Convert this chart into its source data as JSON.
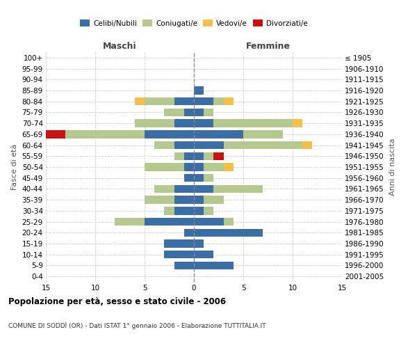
{
  "age_groups": [
    "0-4",
    "5-9",
    "10-14",
    "15-19",
    "20-24",
    "25-29",
    "30-34",
    "35-39",
    "40-44",
    "45-49",
    "50-54",
    "55-59",
    "60-64",
    "65-69",
    "70-74",
    "75-79",
    "80-84",
    "85-89",
    "90-94",
    "95-99",
    "100+"
  ],
  "birth_years": [
    "2001-2005",
    "1996-2000",
    "1991-1995",
    "1986-1990",
    "1981-1985",
    "1976-1980",
    "1971-1975",
    "1966-1970",
    "1961-1965",
    "1956-1960",
    "1951-1955",
    "1946-1950",
    "1941-1945",
    "1936-1940",
    "1931-1935",
    "1926-1930",
    "1921-1925",
    "1916-1920",
    "1911-1915",
    "1906-1910",
    "≤ 1905"
  ],
  "males_celibi": [
    0,
    2,
    3,
    3,
    1,
    5,
    2,
    2,
    2,
    1,
    1,
    1,
    2,
    5,
    2,
    1,
    2,
    0,
    0,
    0,
    0
  ],
  "males_coniugati": [
    0,
    0,
    0,
    0,
    0,
    3,
    1,
    3,
    2,
    0,
    4,
    1,
    2,
    8,
    4,
    2,
    3,
    0,
    0,
    0,
    0
  ],
  "males_vedovi": [
    0,
    0,
    0,
    0,
    0,
    0,
    0,
    0,
    0,
    0,
    0,
    0,
    0,
    0,
    0,
    0,
    1,
    0,
    0,
    0,
    0
  ],
  "males_divorziati": [
    0,
    0,
    0,
    0,
    0,
    0,
    0,
    0,
    0,
    0,
    0,
    0,
    0,
    2,
    0,
    0,
    0,
    0,
    0,
    0,
    0
  ],
  "females_nubili": [
    0,
    4,
    2,
    1,
    7,
    3,
    1,
    1,
    2,
    1,
    1,
    1,
    3,
    5,
    2,
    1,
    2,
    1,
    0,
    0,
    0
  ],
  "females_coniugate": [
    0,
    0,
    0,
    0,
    0,
    1,
    1,
    2,
    5,
    1,
    2,
    1,
    8,
    4,
    8,
    1,
    1,
    0,
    0,
    0,
    0
  ],
  "females_vedove": [
    0,
    0,
    0,
    0,
    0,
    0,
    0,
    0,
    0,
    0,
    1,
    0,
    1,
    0,
    1,
    0,
    1,
    0,
    0,
    0,
    0
  ],
  "females_divorziate": [
    0,
    0,
    0,
    0,
    0,
    0,
    0,
    0,
    0,
    0,
    0,
    1,
    0,
    0,
    0,
    0,
    0,
    0,
    0,
    0,
    0
  ],
  "color_celibi": "#3a6ea5",
  "color_coniugati": "#b5c98e",
  "color_vedovi": "#f5c04a",
  "color_divorziati": "#cc1111",
  "xlim": 15,
  "title": "Popolazione per età, sesso e stato civile - 2006",
  "subtitle": "COMUNE DI SODDÌ (OR) - Dati ISTAT 1° gennaio 2006 - Elaborazione TUTTITALIA.IT",
  "ylabel_left": "Fasce di età",
  "ylabel_right": "Anni di nascita",
  "label_maschi": "Maschi",
  "label_femmine": "Femmine",
  "legend_labels": [
    "Celibi/Nubili",
    "Coniugati/e",
    "Vedovi/e",
    "Divorziati/e"
  ]
}
